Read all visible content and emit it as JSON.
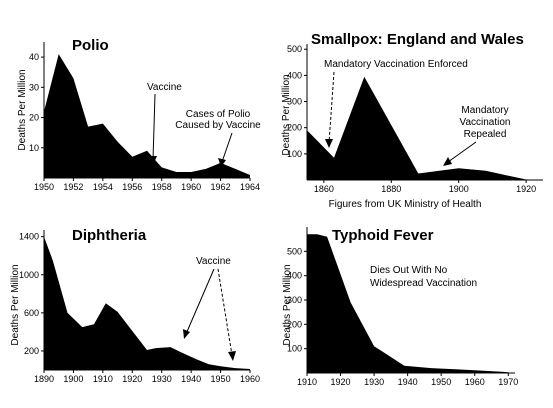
{
  "chart_data": [
    {
      "type": "area",
      "title": "Polio",
      "ylabel": "Deaths Per Million",
      "xlim": [
        1950,
        1964
      ],
      "ylim": [
        0,
        45
      ],
      "yticks": [
        "10",
        "20",
        "30",
        "40"
      ],
      "ytick_values": [
        10,
        20,
        30,
        40
      ],
      "xticks": [
        "1950",
        "1952",
        "1954",
        "1956",
        "1958",
        "1960",
        "1962",
        "1964"
      ],
      "xtick_values": [
        1950,
        1952,
        1954,
        1956,
        1958,
        1960,
        1962,
        1964
      ],
      "x": [
        1950,
        1951,
        1952,
        1953,
        1954,
        1955,
        1956,
        1957,
        1958,
        1959,
        1960,
        1961,
        1962,
        1963,
        1964
      ],
      "values": [
        22,
        41,
        33,
        17,
        18,
        12,
        7,
        9,
        3.5,
        2,
        2,
        3,
        5,
        3,
        1
      ],
      "annotations": [
        {
          "label": "Vaccine",
          "style": "solid"
        },
        {
          "label": "Cases of Polio Caused by Vaccine",
          "lines": [
            "Cases of Polio",
            "Caused by Vaccine"
          ],
          "style": "solid"
        }
      ]
    },
    {
      "type": "area",
      "title": "Smallpox: England and Wales",
      "ylabel": "Deaths Per Million",
      "xlabel": "Figures from UK Ministry of Health",
      "xlim": [
        1855,
        1925
      ],
      "ylim": [
        0,
        520
      ],
      "yticks": [
        "100",
        "200",
        "300",
        "400",
        "500"
      ],
      "ytick_values": [
        100,
        200,
        300,
        400,
        500
      ],
      "xticks": [
        "1860",
        "1880",
        "1900",
        "1920"
      ],
      "xtick_values": [
        1860,
        1880,
        1900,
        1920
      ],
      "x": [
        1855,
        1863,
        1872,
        1888,
        1900,
        1908,
        1920,
        1925
      ],
      "values": [
        190,
        85,
        395,
        25,
        45,
        35,
        2,
        0
      ],
      "annotations": [
        {
          "label": "Mandatory Vaccination Enforced",
          "style": "dashed"
        },
        {
          "label": "Mandatory Vaccination Repealed",
          "lines": [
            "Mandatory",
            "Vaccination",
            "Repealed"
          ],
          "style": "solid"
        }
      ]
    },
    {
      "type": "area",
      "title": "Diphtheria",
      "ylabel": "Deaths Per Million",
      "xlim": [
        1890,
        1960
      ],
      "ylim": [
        0,
        1470
      ],
      "yticks": [
        "200",
        "600",
        "1000",
        "1400"
      ],
      "ytick_values": [
        200,
        600,
        1000,
        1400
      ],
      "xticks": [
        "1890",
        "1900",
        "1910",
        "1920",
        "1930",
        "1940",
        "1950",
        "1960"
      ],
      "xtick_values": [
        1890,
        1900,
        1910,
        1920,
        1930,
        1940,
        1950,
        1960
      ],
      "x": [
        1890,
        1893,
        1898,
        1903,
        1907,
        1911,
        1915,
        1920,
        1925,
        1928,
        1933,
        1937,
        1942,
        1946,
        1950,
        1955,
        1960
      ],
      "values": [
        1400,
        1150,
        600,
        450,
        480,
        700,
        610,
        410,
        210,
        230,
        240,
        180,
        110,
        60,
        40,
        20,
        10
      ],
      "annotations": [
        {
          "label": "Vaccine",
          "style": "solid"
        },
        {
          "label": "",
          "style": "dashed"
        }
      ]
    },
    {
      "type": "area",
      "title": "Typhoid Fever",
      "ylabel": "Deaths Per Million",
      "xlim": [
        1910,
        1972
      ],
      "ylim": [
        0,
        600
      ],
      "yticks": [
        "100",
        "200",
        "300",
        "400",
        "500"
      ],
      "ytick_values": [
        100,
        200,
        300,
        400,
        500
      ],
      "xticks": [
        "1910",
        "1920",
        "1930",
        "1940",
        "1950",
        "1960",
        "1970"
      ],
      "xtick_values": [
        1910,
        1920,
        1930,
        1940,
        1950,
        1960,
        1970
      ],
      "x": [
        1910,
        1913,
        1916,
        1923,
        1930,
        1939,
        1947,
        1955,
        1962,
        1968,
        1970
      ],
      "values": [
        570,
        570,
        560,
        290,
        110,
        30,
        20,
        15,
        10,
        5,
        3
      ],
      "annotations": [
        {
          "label": "Dies Out With No Widespread Vaccination",
          "lines": [
            "Dies Out With No",
            "Widespread Vaccination"
          ],
          "style": "none"
        }
      ]
    }
  ]
}
